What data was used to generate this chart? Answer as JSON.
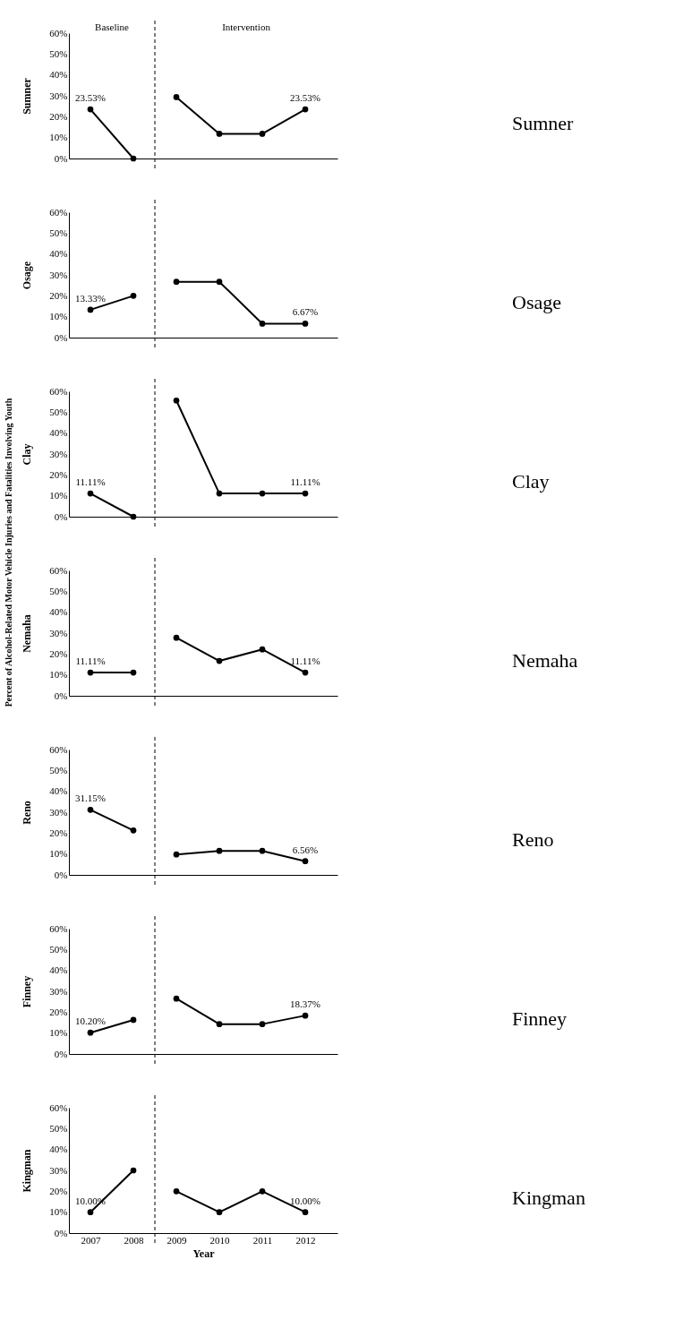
{
  "chart_data": [
    {
      "type": "line",
      "ylabel": "Sumner",
      "xlim": [
        2006.5,
        2012.75
      ],
      "xticks": [
        2007,
        2008,
        2009,
        2010,
        2011,
        2012
      ],
      "ylim": [
        0,
        60
      ],
      "yticks": [
        {
          "value": 0,
          "label": "0%"
        },
        {
          "value": 10,
          "label": "10%"
        },
        {
          "value": 20,
          "label": "20%"
        },
        {
          "value": 30,
          "label": "30%"
        },
        {
          "value": 40,
          "label": "40%"
        },
        {
          "value": 50,
          "label": "50%"
        },
        {
          "value": 60,
          "label": "60%"
        }
      ],
      "tick_labels": "y",
      "grid": false,
      "marker": "circle",
      "line_style": "solid",
      "ref_lines": [
        {
          "axis": "x",
          "value": 2008.5,
          "line_style": "dashed",
          "color": "#000000"
        }
      ],
      "annotations": [
        "Baseline",
        "Intervention",
        "Percent of Alcohol-Related Motor Vehicle Injuries and Fatalities Involving Youth",
        "Sumner"
      ],
      "series": [
        {
          "color": "#000000",
          "x": [
            2007,
            2008
          ],
          "values": [
            23.53,
            0
          ],
          "value_labels": [
            "23.53%",
            null
          ]
        },
        {
          "color": "#000000",
          "x": [
            2009,
            2010,
            2011,
            2012
          ],
          "values": [
            29.4,
            11.8,
            11.8,
            23.53
          ],
          "value_labels": [
            null,
            null,
            null,
            "23.53%"
          ]
        }
      ]
    },
    {
      "type": "line",
      "ylabel": "Osage",
      "xlim": [
        2006.5,
        2012.75
      ],
      "xticks": [
        2007,
        2008,
        2009,
        2010,
        2011,
        2012
      ],
      "ylim": [
        0,
        60
      ],
      "yticks": [
        {
          "value": 0,
          "label": "0%"
        },
        {
          "value": 10,
          "label": "10%"
        },
        {
          "value": 20,
          "label": "20%"
        },
        {
          "value": 30,
          "label": "30%"
        },
        {
          "value": 40,
          "label": "40%"
        },
        {
          "value": 50,
          "label": "50%"
        },
        {
          "value": 60,
          "label": "60%"
        }
      ],
      "tick_labels": "y",
      "grid": false,
      "marker": "circle",
      "line_style": "solid",
      "ref_lines": [
        {
          "axis": "x",
          "value": 2008.5,
          "line_style": "dashed",
          "color": "#000000"
        }
      ],
      "annotations": [
        "Osage"
      ],
      "series": [
        {
          "color": "#000000",
          "x": [
            2007,
            2008
          ],
          "values": [
            13.33,
            20
          ],
          "value_labels": [
            "13.33%",
            null
          ]
        },
        {
          "color": "#000000",
          "x": [
            2009,
            2010,
            2011,
            2012
          ],
          "values": [
            26.7,
            26.7,
            6.67,
            6.67
          ],
          "value_labels": [
            null,
            null,
            null,
            "6.67%"
          ]
        }
      ]
    },
    {
      "type": "line",
      "ylabel": "Clay",
      "xlim": [
        2006.5,
        2012.75
      ],
      "xticks": [
        2007,
        2008,
        2009,
        2010,
        2011,
        2012
      ],
      "ylim": [
        0,
        60
      ],
      "yticks": [
        {
          "value": 0,
          "label": "0%"
        },
        {
          "value": 10,
          "label": "10%"
        },
        {
          "value": 20,
          "label": "20%"
        },
        {
          "value": 30,
          "label": "30%"
        },
        {
          "value": 40,
          "label": "40%"
        },
        {
          "value": 50,
          "label": "50%"
        },
        {
          "value": 60,
          "label": "60%"
        }
      ],
      "tick_labels": "y",
      "grid": false,
      "marker": "circle",
      "line_style": "solid",
      "ref_lines": [
        {
          "axis": "x",
          "value": 2008.5,
          "line_style": "dashed",
          "color": "#000000"
        }
      ],
      "annotations": [
        "Clay"
      ],
      "series": [
        {
          "color": "#000000",
          "x": [
            2007,
            2008
          ],
          "values": [
            11.11,
            0
          ],
          "value_labels": [
            "11.11%",
            null
          ]
        },
        {
          "color": "#000000",
          "x": [
            2009,
            2010,
            2011,
            2012
          ],
          "values": [
            55.6,
            11.1,
            11.1,
            11.11
          ],
          "value_labels": [
            null,
            null,
            null,
            "11.11%"
          ]
        }
      ]
    },
    {
      "type": "line",
      "ylabel": "Nemaha",
      "xlim": [
        2006.5,
        2012.75
      ],
      "xticks": [
        2007,
        2008,
        2009,
        2010,
        2011,
        2012
      ],
      "ylim": [
        0,
        60
      ],
      "yticks": [
        {
          "value": 0,
          "label": "0%"
        },
        {
          "value": 10,
          "label": "10%"
        },
        {
          "value": 20,
          "label": "20%"
        },
        {
          "value": 30,
          "label": "30%"
        },
        {
          "value": 40,
          "label": "40%"
        },
        {
          "value": 50,
          "label": "50%"
        },
        {
          "value": 60,
          "label": "60%"
        }
      ],
      "tick_labels": "y",
      "grid": false,
      "marker": "circle",
      "line_style": "solid",
      "ref_lines": [
        {
          "axis": "x",
          "value": 2008.5,
          "line_style": "dashed",
          "color": "#000000"
        }
      ],
      "annotations": [
        "Nemaha"
      ],
      "series": [
        {
          "color": "#000000",
          "x": [
            2007,
            2008
          ],
          "values": [
            11.11,
            11.1
          ],
          "value_labels": [
            "11.11%",
            null
          ]
        },
        {
          "color": "#000000",
          "x": [
            2009,
            2010,
            2011,
            2012
          ],
          "values": [
            27.8,
            16.7,
            22.2,
            11.11
          ],
          "value_labels": [
            null,
            null,
            null,
            "11.11%"
          ]
        }
      ]
    },
    {
      "type": "line",
      "ylabel": "Reno",
      "xlim": [
        2006.5,
        2012.75
      ],
      "xticks": [
        2007,
        2008,
        2009,
        2010,
        2011,
        2012
      ],
      "ylim": [
        0,
        60
      ],
      "yticks": [
        {
          "value": 0,
          "label": "0%"
        },
        {
          "value": 10,
          "label": "10%"
        },
        {
          "value": 20,
          "label": "20%"
        },
        {
          "value": 30,
          "label": "30%"
        },
        {
          "value": 40,
          "label": "40%"
        },
        {
          "value": 50,
          "label": "50%"
        },
        {
          "value": 60,
          "label": "60%"
        }
      ],
      "tick_labels": "y",
      "grid": false,
      "marker": "circle",
      "line_style": "solid",
      "ref_lines": [
        {
          "axis": "x",
          "value": 2008.5,
          "line_style": "dashed",
          "color": "#000000"
        }
      ],
      "annotations": [
        "Reno"
      ],
      "series": [
        {
          "color": "#000000",
          "x": [
            2007,
            2008
          ],
          "values": [
            31.15,
            21.3
          ],
          "value_labels": [
            "31.15%",
            null
          ]
        },
        {
          "color": "#000000",
          "x": [
            2009,
            2010,
            2011,
            2012
          ],
          "values": [
            9.8,
            11.5,
            11.5,
            6.56
          ],
          "value_labels": [
            null,
            null,
            null,
            "6.56%"
          ]
        }
      ]
    },
    {
      "type": "line",
      "ylabel": "Finney",
      "xlim": [
        2006.5,
        2012.75
      ],
      "xticks": [
        2007,
        2008,
        2009,
        2010,
        2011,
        2012
      ],
      "ylim": [
        0,
        60
      ],
      "yticks": [
        {
          "value": 0,
          "label": "0%"
        },
        {
          "value": 10,
          "label": "10%"
        },
        {
          "value": 20,
          "label": "20%"
        },
        {
          "value": 30,
          "label": "30%"
        },
        {
          "value": 40,
          "label": "40%"
        },
        {
          "value": 50,
          "label": "50%"
        },
        {
          "value": 60,
          "label": "60%"
        }
      ],
      "tick_labels": "y",
      "grid": false,
      "marker": "circle",
      "line_style": "solid",
      "ref_lines": [
        {
          "axis": "x",
          "value": 2008.5,
          "line_style": "dashed",
          "color": "#000000"
        }
      ],
      "annotations": [
        "Finney"
      ],
      "series": [
        {
          "color": "#000000",
          "x": [
            2007,
            2008
          ],
          "values": [
            10.2,
            16.3
          ],
          "value_labels": [
            "10.20%",
            null
          ]
        },
        {
          "color": "#000000",
          "x": [
            2009,
            2010,
            2011,
            2012
          ],
          "values": [
            26.5,
            14.3,
            14.3,
            18.37
          ],
          "value_labels": [
            null,
            null,
            null,
            "18.37%"
          ]
        }
      ]
    },
    {
      "type": "line",
      "ylabel": "Kingman",
      "xlabel": "Year",
      "xlim": [
        2006.5,
        2012.75
      ],
      "xticks": [
        2007,
        2008,
        2009,
        2010,
        2011,
        2012
      ],
      "ylim": [
        0,
        60
      ],
      "yticks": [
        {
          "value": 0,
          "label": "0%"
        },
        {
          "value": 10,
          "label": "10%"
        },
        {
          "value": 20,
          "label": "20%"
        },
        {
          "value": 30,
          "label": "30%"
        },
        {
          "value": 40,
          "label": "40%"
        },
        {
          "value": 50,
          "label": "50%"
        },
        {
          "value": 60,
          "label": "60%"
        }
      ],
      "grid": false,
      "marker": "circle",
      "line_style": "solid",
      "ref_lines": [
        {
          "axis": "x",
          "value": 2008.5,
          "line_style": "dashed",
          "color": "#000000"
        }
      ],
      "annotations": [
        "Kingman"
      ],
      "series": [
        {
          "color": "#000000",
          "x": [
            2007,
            2008
          ],
          "values": [
            10.0,
            30
          ],
          "value_labels": [
            "10.00%",
            null
          ]
        },
        {
          "color": "#000000",
          "x": [
            2009,
            2010,
            2011,
            2012
          ],
          "values": [
            20,
            10,
            20,
            10.0
          ],
          "value_labels": [
            null,
            null,
            null,
            "10.00%"
          ]
        }
      ]
    }
  ]
}
